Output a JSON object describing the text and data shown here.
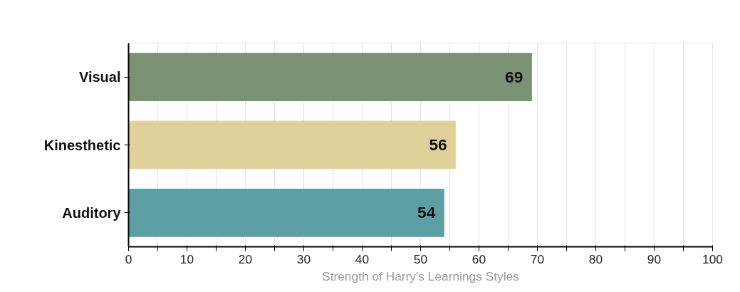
{
  "chart_data": {
    "type": "bar",
    "orientation": "horizontal",
    "xlabel": "Strength of Harry's Learnings Styles",
    "categories": [
      "Visual",
      "Kinesthetic",
      "Auditory"
    ],
    "values": [
      69,
      56,
      54
    ],
    "colors": [
      "#7a9173",
      "#e0d09a",
      "#5e9fa5"
    ],
    "data_labels": true,
    "xlim": [
      0,
      100
    ],
    "xticks": [
      0,
      {
        "value": 5,
        "label": null
      },
      10,
      {
        "value": 15,
        "label": null
      },
      20,
      {
        "value": 25,
        "label": null
      },
      30,
      {
        "value": 35,
        "label": null
      },
      40,
      {
        "value": 45,
        "label": null
      },
      50,
      {
        "value": 55,
        "label": null
      },
      60,
      {
        "value": 65,
        "label": null
      },
      70,
      {
        "value": 75,
        "label": null
      },
      80,
      {
        "value": 85,
        "label": null
      },
      90,
      {
        "value": 95,
        "label": null
      },
      100
    ],
    "grid": "x"
  }
}
